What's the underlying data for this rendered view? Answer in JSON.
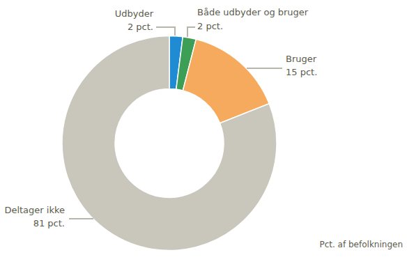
{
  "chart_data": {
    "type": "pie",
    "categories": [
      "Udbyder",
      "Både udbyder og bruger",
      "Bruger",
      "Deltager ikke"
    ],
    "values": [
      2,
      2,
      15,
      81
    ],
    "value_labels": [
      "2 pct.",
      "2 pct.",
      "15 pct.",
      "81 pct."
    ],
    "colors": [
      "#1e8bd3",
      "#3d9f55",
      "#f6aa5e",
      "#c9c7bc"
    ],
    "data_labels": true,
    "annotations": [
      "Pct. af befolkningen"
    ]
  }
}
